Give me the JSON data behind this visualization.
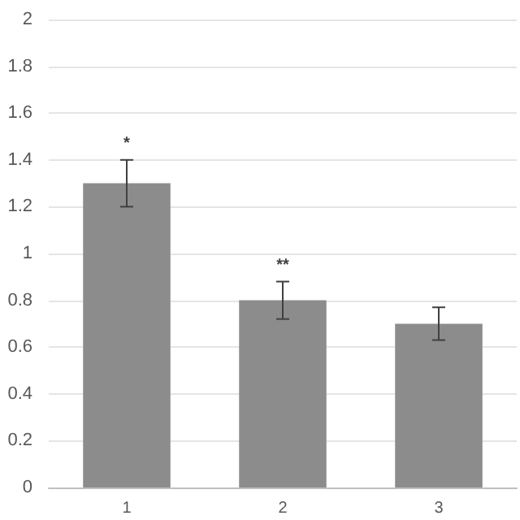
{
  "chart_data": {
    "type": "bar",
    "categories": [
      "1",
      "2",
      "3"
    ],
    "values": [
      1.3,
      0.8,
      0.7
    ],
    "errors": [
      0.1,
      0.08,
      0.07
    ],
    "color": "#8c8c8c",
    "ylim": [
      0,
      2
    ],
    "yticks": [
      0,
      0.2,
      0.4,
      0.6,
      0.8,
      1,
      1.2,
      1.4,
      1.6,
      1.8,
      2
    ],
    "grid": "y",
    "annotations": [
      {
        "text": "*",
        "x": "1",
        "y": 1.4
      },
      {
        "text": "**",
        "x": "2",
        "y": 0.88
      }
    ]
  }
}
